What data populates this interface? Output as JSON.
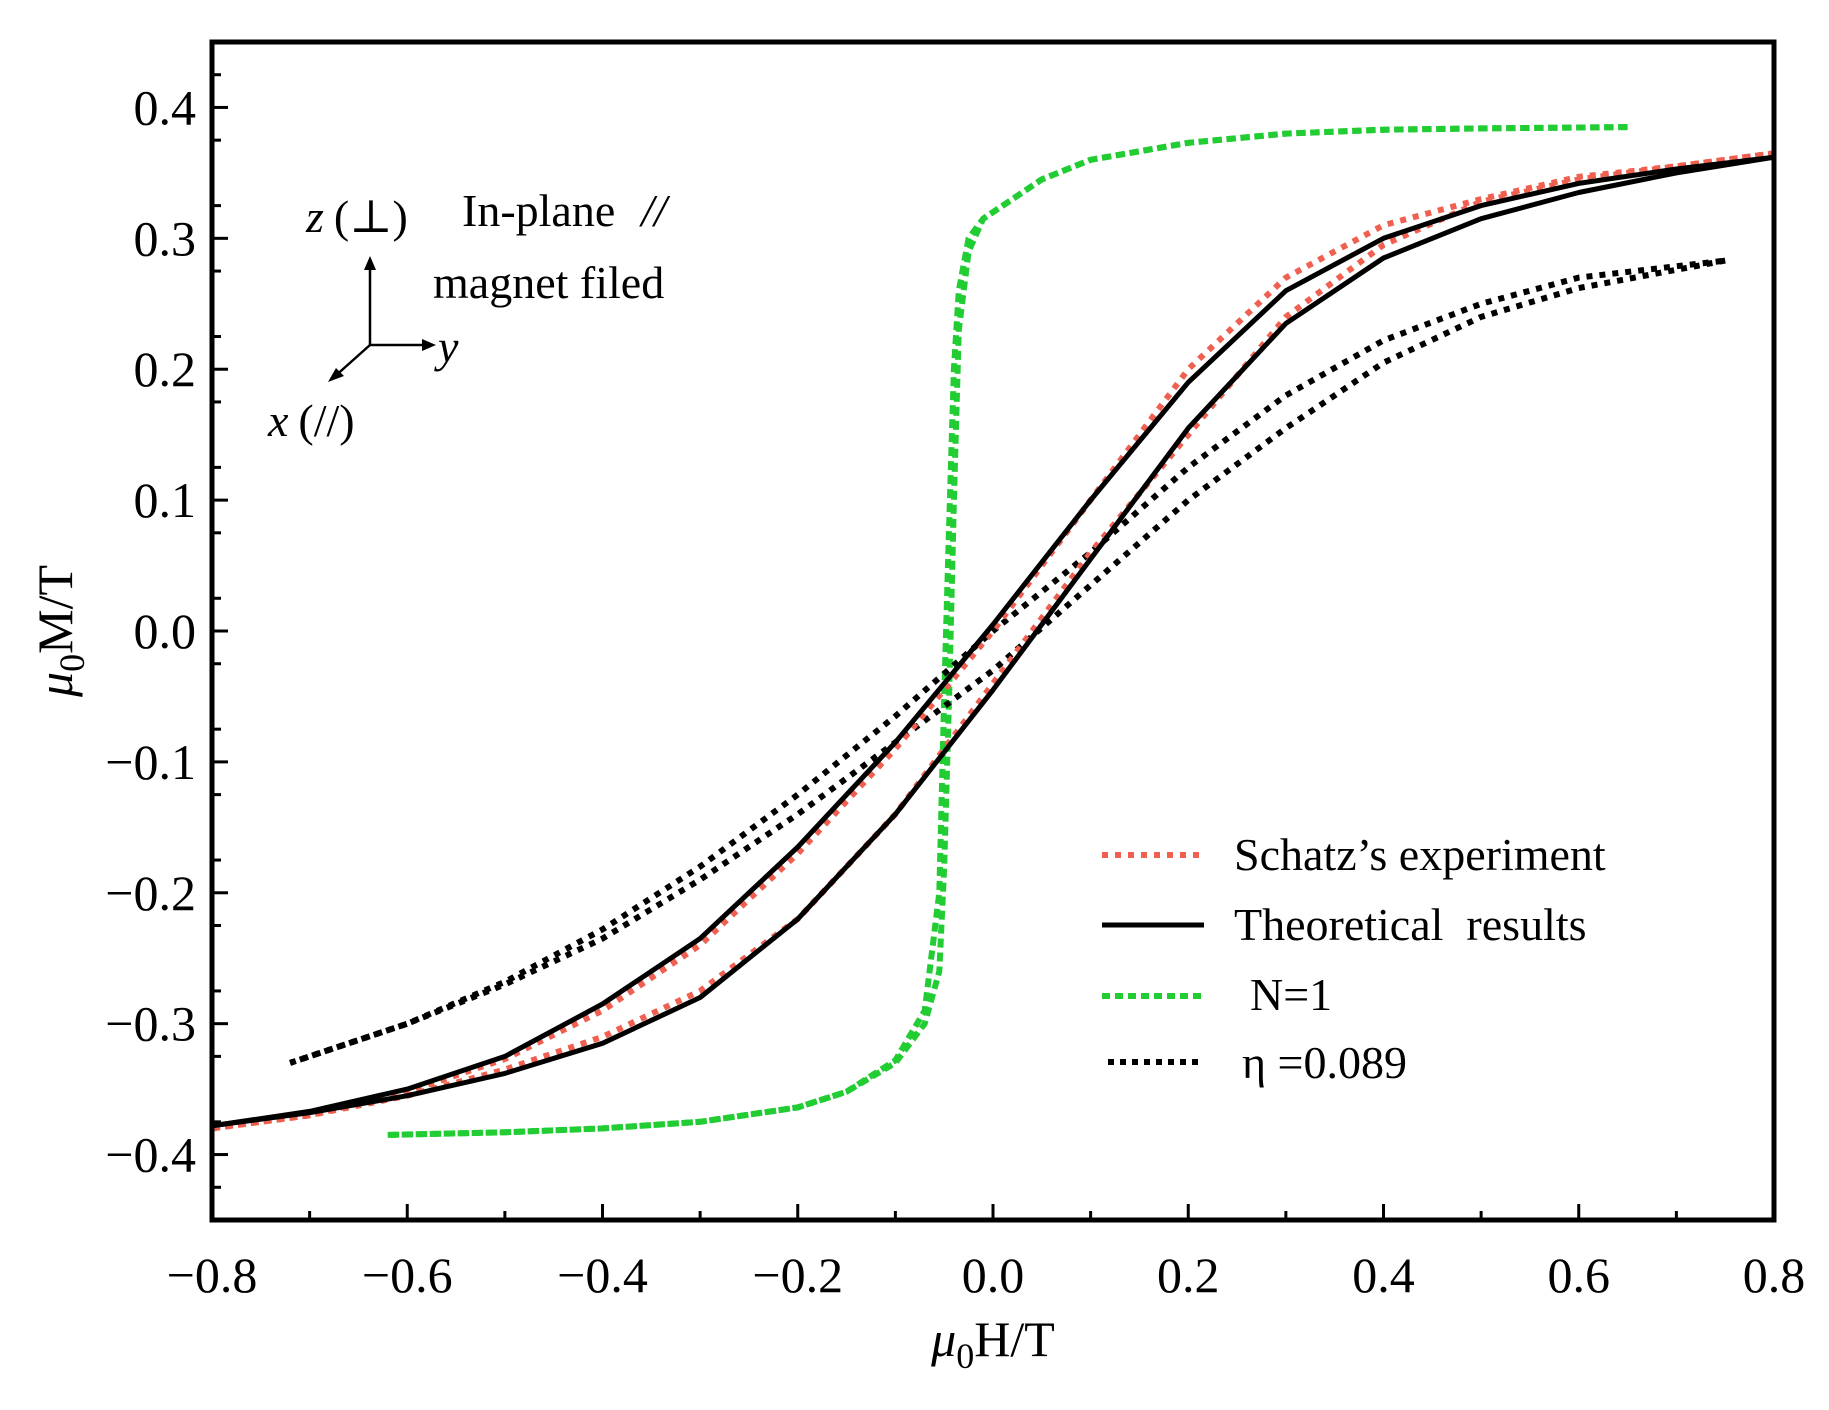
{
  "chart_data": {
    "type": "line",
    "title": "",
    "xlabel_symbol": "μ",
    "xlabel_sub": "0",
    "xlabel_rest": "H/T",
    "ylabel_symbol": "μ",
    "ylabel_sub": "0",
    "ylabel_rest": "M/T",
    "xlim": [
      -0.8,
      0.8
    ],
    "ylim": [
      -0.45,
      0.45
    ],
    "xticks": [
      -0.8,
      -0.6,
      -0.4,
      -0.2,
      0.0,
      0.2,
      0.4,
      0.6,
      0.8
    ],
    "yticks": [
      -0.4,
      -0.3,
      -0.2,
      -0.1,
      0.0,
      0.1,
      0.2,
      0.3,
      0.4
    ],
    "xtick_labels": [
      "−0.8",
      "−0.6",
      "−0.4",
      "−0.2",
      "0.0",
      "0.2",
      "0.4",
      "0.6",
      "0.8"
    ],
    "ytick_labels": [
      "−0.4",
      "−0.3",
      "−0.2",
      "−0.1",
      "0.0",
      "0.1",
      "0.2",
      "0.3",
      "0.4"
    ],
    "legend_position": "bottom-right",
    "series": [
      {
        "name": "Schatz’s experiment",
        "color": "#f06050",
        "style": "dotted",
        "branches": [
          {
            "x": [
              -0.8,
              -0.7,
              -0.6,
              -0.5,
              -0.4,
              -0.3,
              -0.2,
              -0.1,
              0.0,
              0.1,
              0.2,
              0.3,
              0.4,
              0.5,
              0.6,
              0.7,
              0.8
            ],
            "y": [
              -0.38,
              -0.37,
              -0.352,
              -0.327,
              -0.29,
              -0.24,
              -0.17,
              -0.09,
              0.0,
              0.1,
              0.2,
              0.27,
              0.31,
              0.33,
              0.347,
              0.355,
              0.365
            ]
          },
          {
            "x": [
              0.8,
              0.7,
              0.6,
              0.5,
              0.4,
              0.3,
              0.2,
              0.1,
              0.0,
              -0.1,
              -0.2,
              -0.3,
              -0.4,
              -0.5,
              -0.6,
              -0.7,
              -0.8
            ],
            "y": [
              0.365,
              0.355,
              0.345,
              0.328,
              0.295,
              0.24,
              0.15,
              0.06,
              -0.04,
              -0.14,
              -0.22,
              -0.275,
              -0.31,
              -0.335,
              -0.355,
              -0.37,
              -0.38
            ]
          }
        ]
      },
      {
        "name": "Theoretical  results",
        "color": "#000000",
        "style": "solid",
        "branches": [
          {
            "x": [
              -0.8,
              -0.7,
              -0.6,
              -0.5,
              -0.4,
              -0.3,
              -0.2,
              -0.1,
              0.0,
              0.1,
              0.2,
              0.3,
              0.4,
              0.5,
              0.6,
              0.7,
              0.8
            ],
            "y": [
              -0.378,
              -0.367,
              -0.35,
              -0.325,
              -0.285,
              -0.235,
              -0.165,
              -0.085,
              0.005,
              0.1,
              0.19,
              0.26,
              0.3,
              0.325,
              0.342,
              0.353,
              0.362
            ]
          },
          {
            "x": [
              0.8,
              0.7,
              0.6,
              0.5,
              0.4,
              0.3,
              0.2,
              0.1,
              0.0,
              -0.1,
              -0.2,
              -0.3,
              -0.4,
              -0.5,
              -0.6,
              -0.7,
              -0.8
            ],
            "y": [
              0.362,
              0.35,
              0.335,
              0.315,
              0.285,
              0.235,
              0.155,
              0.055,
              -0.045,
              -0.14,
              -0.22,
              -0.28,
              -0.315,
              -0.338,
              -0.355,
              -0.368,
              -0.378
            ]
          }
        ]
      },
      {
        "name": "N=1",
        "color": "#22cc33",
        "style": "dashed",
        "branches": [
          {
            "x": [
              -0.62,
              -0.5,
              -0.4,
              -0.3,
              -0.2,
              -0.15,
              -0.1,
              -0.07,
              -0.055,
              -0.05,
              -0.045,
              -0.04,
              -0.035,
              -0.025,
              -0.01,
              0.02,
              0.05,
              0.1,
              0.2,
              0.3,
              0.4,
              0.5,
              0.65
            ],
            "y": [
              -0.385,
              -0.383,
              -0.38,
              -0.375,
              -0.364,
              -0.352,
              -0.328,
              -0.29,
              -0.2,
              -0.05,
              0.08,
              0.2,
              0.26,
              0.3,
              0.315,
              0.33,
              0.345,
              0.36,
              0.373,
              0.38,
              0.383,
              0.384,
              0.385
            ]
          },
          {
            "x": [
              0.65,
              0.5,
              0.4,
              0.3,
              0.2,
              0.1,
              0.05,
              0.02,
              -0.01,
              -0.025,
              -0.035,
              -0.04,
              -0.045,
              -0.05,
              -0.055,
              -0.07,
              -0.1,
              -0.15,
              -0.2,
              -0.3,
              -0.4,
              -0.5,
              -0.62
            ],
            "y": [
              0.385,
              0.384,
              0.383,
              0.38,
              0.373,
              0.36,
              0.345,
              0.33,
              0.315,
              0.29,
              0.23,
              0.1,
              -0.05,
              -0.18,
              -0.26,
              -0.3,
              -0.33,
              -0.352,
              -0.364,
              -0.375,
              -0.38,
              -0.383,
              -0.385
            ]
          }
        ]
      },
      {
        "name": "η =0.089",
        "color": "#000000",
        "style": "dotted",
        "branches": [
          {
            "x": [
              -0.72,
              -0.6,
              -0.5,
              -0.4,
              -0.3,
              -0.2,
              -0.1,
              0.0,
              0.1,
              0.2,
              0.3,
              0.4,
              0.5,
              0.6,
              0.75
            ],
            "y": [
              -0.33,
              -0.3,
              -0.268,
              -0.228,
              -0.18,
              -0.125,
              -0.065,
              0.0,
              0.06,
              0.125,
              0.18,
              0.222,
              0.25,
              0.27,
              0.283
            ]
          },
          {
            "x": [
              0.75,
              0.6,
              0.5,
              0.4,
              0.3,
              0.2,
              0.1,
              0.0,
              -0.1,
              -0.2,
              -0.3,
              -0.4,
              -0.5,
              -0.6,
              -0.72
            ],
            "y": [
              0.283,
              0.262,
              0.24,
              0.205,
              0.155,
              0.1,
              0.035,
              -0.03,
              -0.085,
              -0.14,
              -0.19,
              -0.235,
              -0.27,
              -0.3,
              -0.33
            ]
          }
        ]
      }
    ],
    "annotations": {
      "z_label": "z",
      "z_paren": "(⊥)",
      "y_label": "y",
      "x_label": "x",
      "x_paren": "(//)",
      "inplane_line1": "In-plane",
      "inplane_slashes": "//",
      "inplane_line2": "magnet filed"
    }
  }
}
